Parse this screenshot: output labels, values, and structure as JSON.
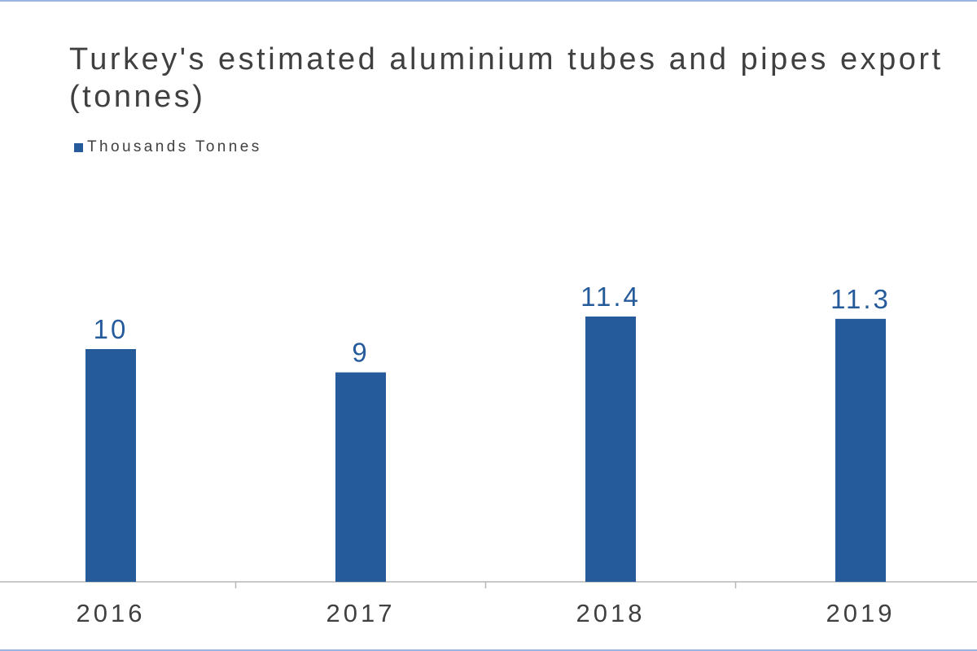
{
  "colors": {
    "bar": "#265b9b",
    "axis": "#b7b7b7",
    "text": "#404040",
    "label": "#265b9b"
  },
  "chart_data": {
    "type": "bar",
    "title": "Turkey's estimated aluminium tubes and pipes export (tonnes)",
    "categories": [
      "2016",
      "2017",
      "2018",
      "2019"
    ],
    "series": [
      {
        "name": "Thousands Tonnes",
        "values": [
          10,
          9,
          11.4,
          11.3
        ]
      }
    ],
    "data_labels": [
      "10",
      "9",
      "11.4",
      "11.3"
    ],
    "ylim": [
      0,
      25
    ],
    "grid": false,
    "legend_position": "top-left"
  }
}
